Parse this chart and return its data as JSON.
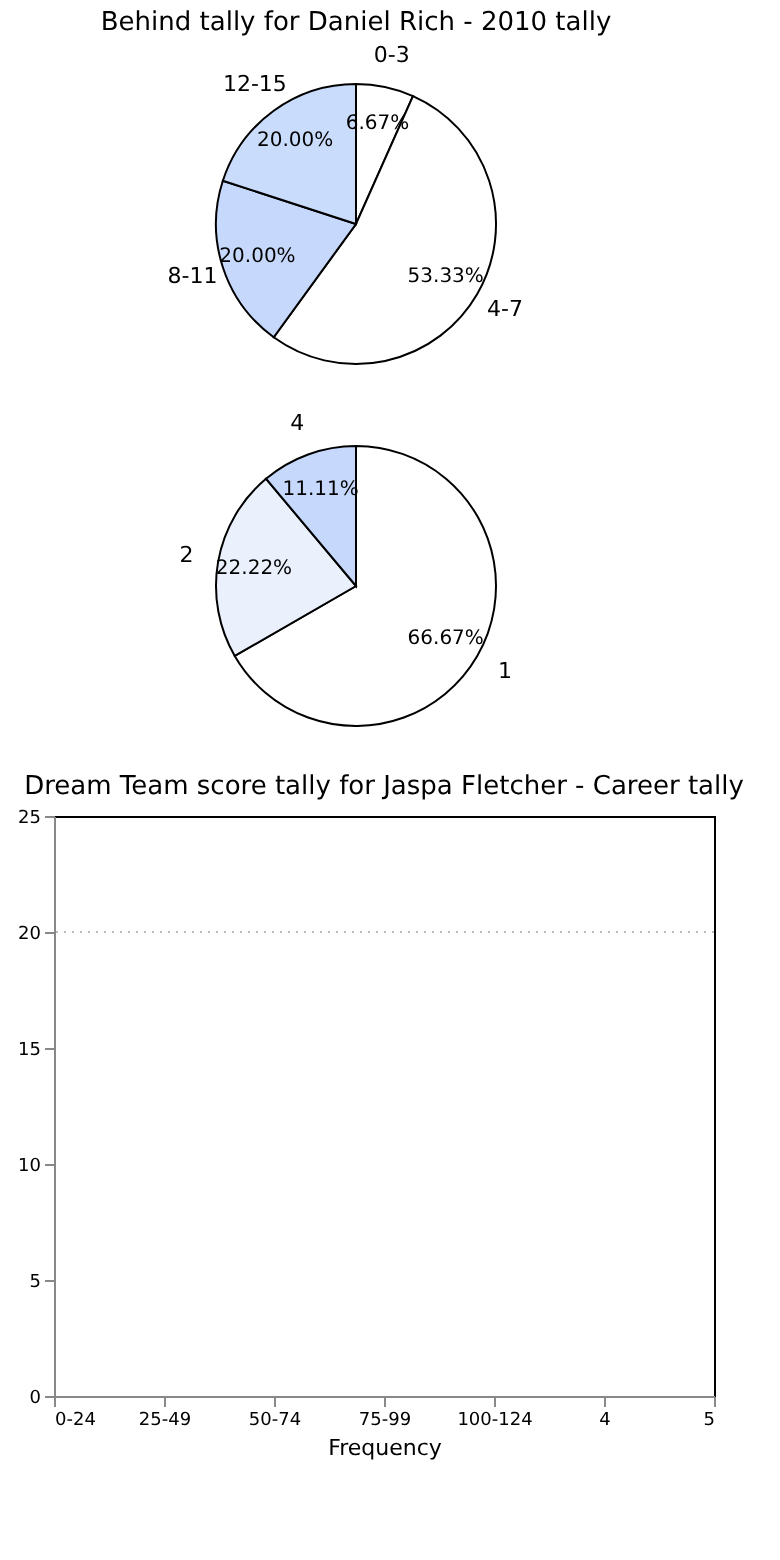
{
  "chart_data": [
    {
      "type": "pie",
      "title": "Behind tally for Daniel Rich - 2010 tally",
      "categories": [
        "0-3",
        "4-7",
        "8-11",
        "12-15"
      ],
      "values": [
        6.67,
        53.33,
        20.0,
        20.0
      ],
      "value_labels": [
        "6.67%",
        "53.33%",
        "20.00%",
        "20.00%"
      ],
      "colors": [
        "#ffffff",
        "#ffffff",
        "#c6d9fd",
        "#cadcfc"
      ]
    },
    {
      "type": "pie",
      "categories": [
        "1",
        "2",
        "4"
      ],
      "values": [
        66.67,
        22.22,
        11.11
      ],
      "value_labels": [
        "66.67%",
        "22.22%",
        "11.11%"
      ],
      "colors": [
        "#ffffff",
        "#eaf1fd",
        "#c6d9fd"
      ]
    },
    {
      "type": "bar",
      "title": "Dream Team score tally for Jaspa Fletcher - Career tally",
      "xlabel": "Frequency",
      "xlim": [
        -1,
        5
      ],
      "xticks": [
        {
          "value": -1,
          "label": "0-24"
        },
        {
          "value": 0,
          "label": "25-49"
        },
        {
          "value": 1,
          "label": "50-74"
        },
        {
          "value": 2,
          "label": "75-99"
        },
        {
          "value": 3,
          "label": "100-124"
        },
        4,
        5
      ],
      "ylim": [
        0,
        25
      ],
      "yticks": [
        0,
        5,
        10,
        15,
        20,
        25
      ],
      "ref_lines": [
        {
          "axis": "y",
          "value": 20,
          "line_style": "dotted",
          "color": "#bbbbbb"
        }
      ]
    }
  ]
}
